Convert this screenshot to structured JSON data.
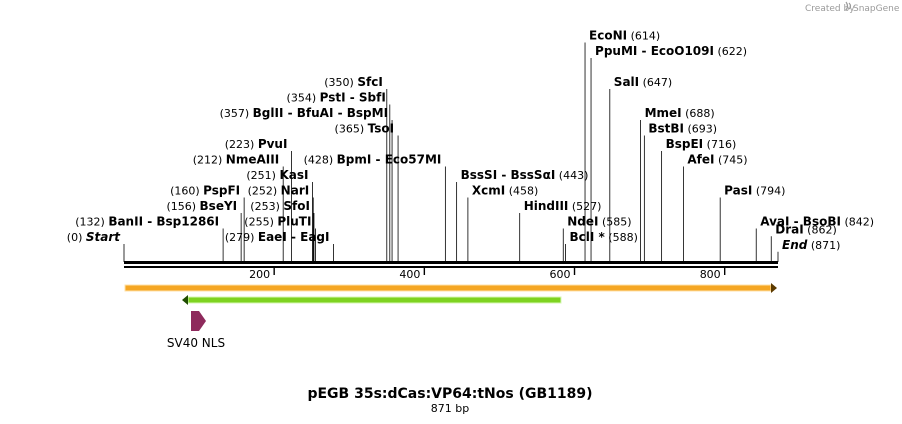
{
  "credit": {
    "prefix": "Created by",
    "brand": "SnapGene"
  },
  "title": "pEGB 35s:dCas:VP64:tNos (GB1189)",
  "length_label": "871 bp",
  "ruler": {
    "length": 871,
    "ticks": [
      200,
      400,
      600,
      800
    ]
  },
  "sites": [
    {
      "name": "Start",
      "pos": 0,
      "italic": true,
      "row": 0
    },
    {
      "name": "BanII - Bsp1286I",
      "pos": 132,
      "row": 1
    },
    {
      "name": "BseYI",
      "pos": 156,
      "row": 2
    },
    {
      "name": "PspFI",
      "pos": 160,
      "row": 3
    },
    {
      "name": "NmeAIII",
      "pos": 212,
      "row": 5
    },
    {
      "name": "PvuI",
      "pos": 223,
      "row": 6
    },
    {
      "name": "KasI",
      "pos": 251,
      "row": 4
    },
    {
      "name": "NarI",
      "pos": 252,
      "row": 3
    },
    {
      "name": "SfoI",
      "pos": 253,
      "row": 2
    },
    {
      "name": "PluTI",
      "pos": 255,
      "row": 1
    },
    {
      "name": "EaeI - EagI",
      "pos": 279,
      "row": 0
    },
    {
      "name": "TsoI",
      "pos": 365,
      "row": 7
    },
    {
      "name": "BglII - BfuAI - BspMI",
      "pos": 357,
      "row": 8
    },
    {
      "name": "PstI - SbfI",
      "pos": 354,
      "row": 9
    },
    {
      "name": "SfcI",
      "pos": 350,
      "row": 10
    },
    {
      "name": "BpmI - Eco57MI",
      "pos": 428,
      "row": 5
    },
    {
      "name": "BssSI - BssSαI",
      "pos": 443,
      "row": 4
    },
    {
      "name": "XcmI",
      "pos": 458,
      "row": 3
    },
    {
      "name": "HindIII",
      "pos": 527,
      "row": 2
    },
    {
      "name": "NdeI",
      "pos": 585,
      "row": 1
    },
    {
      "name": "BclI *",
      "pos": 588,
      "row": 0
    },
    {
      "name": "EcoNI",
      "pos": 614,
      "row": 13
    },
    {
      "name": "PpuMI - EcoO109I",
      "pos": 622,
      "row": 12
    },
    {
      "name": "SalI",
      "pos": 647,
      "row": 10
    },
    {
      "name": "MmeI",
      "pos": 688,
      "row": 8
    },
    {
      "name": "BstBI",
      "pos": 693,
      "row": 7
    },
    {
      "name": "BspEI",
      "pos": 716,
      "row": 6
    },
    {
      "name": "AfeI",
      "pos": 745,
      "row": 5
    },
    {
      "name": "PasI",
      "pos": 794,
      "row": 3
    },
    {
      "name": "AvaI - BsoBI",
      "pos": 842,
      "row": 1
    },
    {
      "name": "DraI",
      "pos": 862,
      "row": 0.5
    },
    {
      "name": "End",
      "pos": 871,
      "italic": true,
      "row": -0.5
    }
  ],
  "features": [
    {
      "name": "",
      "type": "orange-bar",
      "start": 1,
      "end": 871,
      "direction": "forward",
      "color": "#f5a623"
    },
    {
      "name": "",
      "type": "green-bar",
      "start": 80,
      "end": 583,
      "direction": "reverse",
      "color": "#7ed321"
    },
    {
      "name": "SV40 NLS",
      "type": "arrow",
      "start": 90,
      "end": 111,
      "direction": "forward",
      "color": "#8e2a5c"
    }
  ],
  "colors": {
    "backbone": "#000000",
    "credit": "#9a9a9a"
  }
}
